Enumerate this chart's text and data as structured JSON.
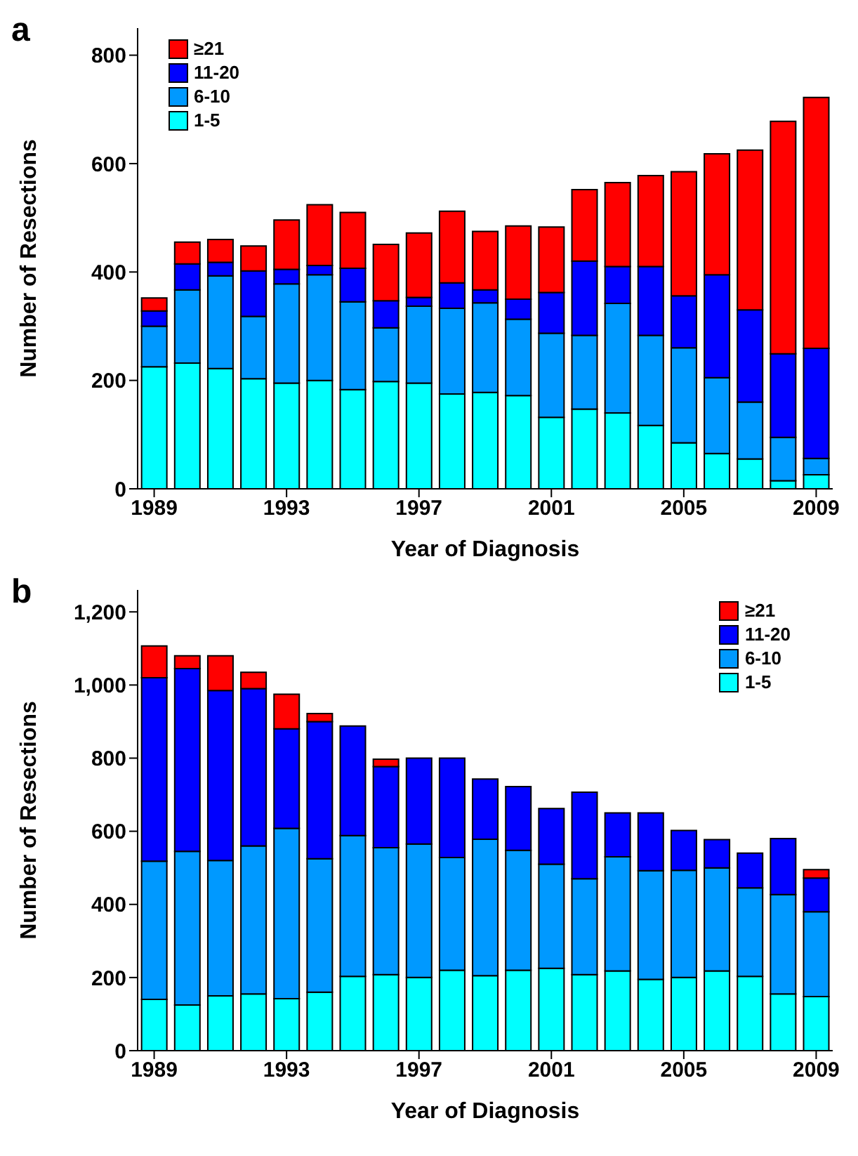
{
  "chart_data": [
    {
      "type": "bar",
      "title": "a",
      "xlabel": "Year of Diagnosis",
      "ylabel": "Number of Resections",
      "stacked": true,
      "legend": "top left",
      "grid": false,
      "categories": [
        "1989",
        null,
        null,
        null,
        "1993",
        null,
        null,
        null,
        "1997",
        null,
        null,
        null,
        "2001",
        null,
        null,
        null,
        "2005",
        null,
        null,
        null,
        "2009"
      ],
      "ylim": [
        0,
        850
      ],
      "yticks": [
        0,
        200,
        400,
        600,
        800
      ],
      "series": [
        {
          "name": "1-5",
          "color": "#00ffff",
          "values": [
            225,
            232,
            222,
            203,
            195,
            200,
            183,
            198,
            195,
            175,
            178,
            172,
            132,
            147,
            140,
            117,
            85,
            65,
            55,
            15,
            26
          ]
        },
        {
          "name": "6-10",
          "color": "#0099ff",
          "values": [
            75,
            135,
            171,
            115,
            183,
            195,
            162,
            99,
            142,
            158,
            165,
            141,
            155,
            136,
            202,
            166,
            175,
            140,
            105,
            80,
            30
          ]
        },
        {
          "name": "11-20",
          "color": "#0000ff",
          "values": [
            28,
            48,
            25,
            84,
            27,
            17,
            62,
            50,
            16,
            47,
            24,
            37,
            75,
            137,
            68,
            127,
            96,
            190,
            170,
            154,
            203
          ]
        },
        {
          "name": "≥21",
          "color": "#ff0000",
          "values": [
            24,
            40,
            42,
            46,
            91,
            112,
            103,
            104,
            119,
            132,
            108,
            135,
            121,
            132,
            155,
            168,
            229,
            223,
            295,
            429,
            463
          ]
        }
      ]
    },
    {
      "type": "bar",
      "title": "b",
      "xlabel": "Year of Diagnosis",
      "ylabel": "Number of Resections",
      "stacked": true,
      "legend": "top right",
      "grid": false,
      "categories": [
        "1989",
        null,
        null,
        null,
        "1993",
        null,
        null,
        null,
        "1997",
        null,
        null,
        null,
        "2001",
        null,
        null,
        null,
        "2005",
        null,
        null,
        null,
        "2009"
      ],
      "ylim": [
        0,
        1260
      ],
      "yticks": [
        0,
        200,
        400,
        600,
        800,
        {
          "value": 1000,
          "label": "1,000"
        },
        {
          "value": 1200,
          "label": "1,200"
        }
      ],
      "series": [
        {
          "name": "1-5",
          "color": "#00ffff",
          "values": [
            140,
            125,
            150,
            155,
            142,
            160,
            203,
            208,
            200,
            220,
            205,
            220,
            225,
            208,
            218,
            195,
            200,
            218,
            203,
            155,
            148
          ]
        },
        {
          "name": "6-10",
          "color": "#0099ff",
          "values": [
            378,
            420,
            370,
            405,
            466,
            365,
            385,
            347,
            365,
            308,
            373,
            328,
            285,
            262,
            312,
            297,
            293,
            282,
            242,
            272,
            232
          ]
        },
        {
          "name": "11-20",
          "color": "#0000ff",
          "values": [
            502,
            500,
            465,
            430,
            272,
            375,
            300,
            222,
            235,
            272,
            165,
            174,
            152,
            237,
            120,
            158,
            109,
            77,
            95,
            153,
            92
          ]
        },
        {
          "name": "≥21",
          "color": "#ff0000",
          "values": [
            87,
            35,
            95,
            45,
            95,
            22,
            0,
            20,
            0,
            0,
            0,
            0,
            0,
            0,
            0,
            0,
            0,
            0,
            0,
            0,
            23
          ]
        }
      ]
    }
  ]
}
